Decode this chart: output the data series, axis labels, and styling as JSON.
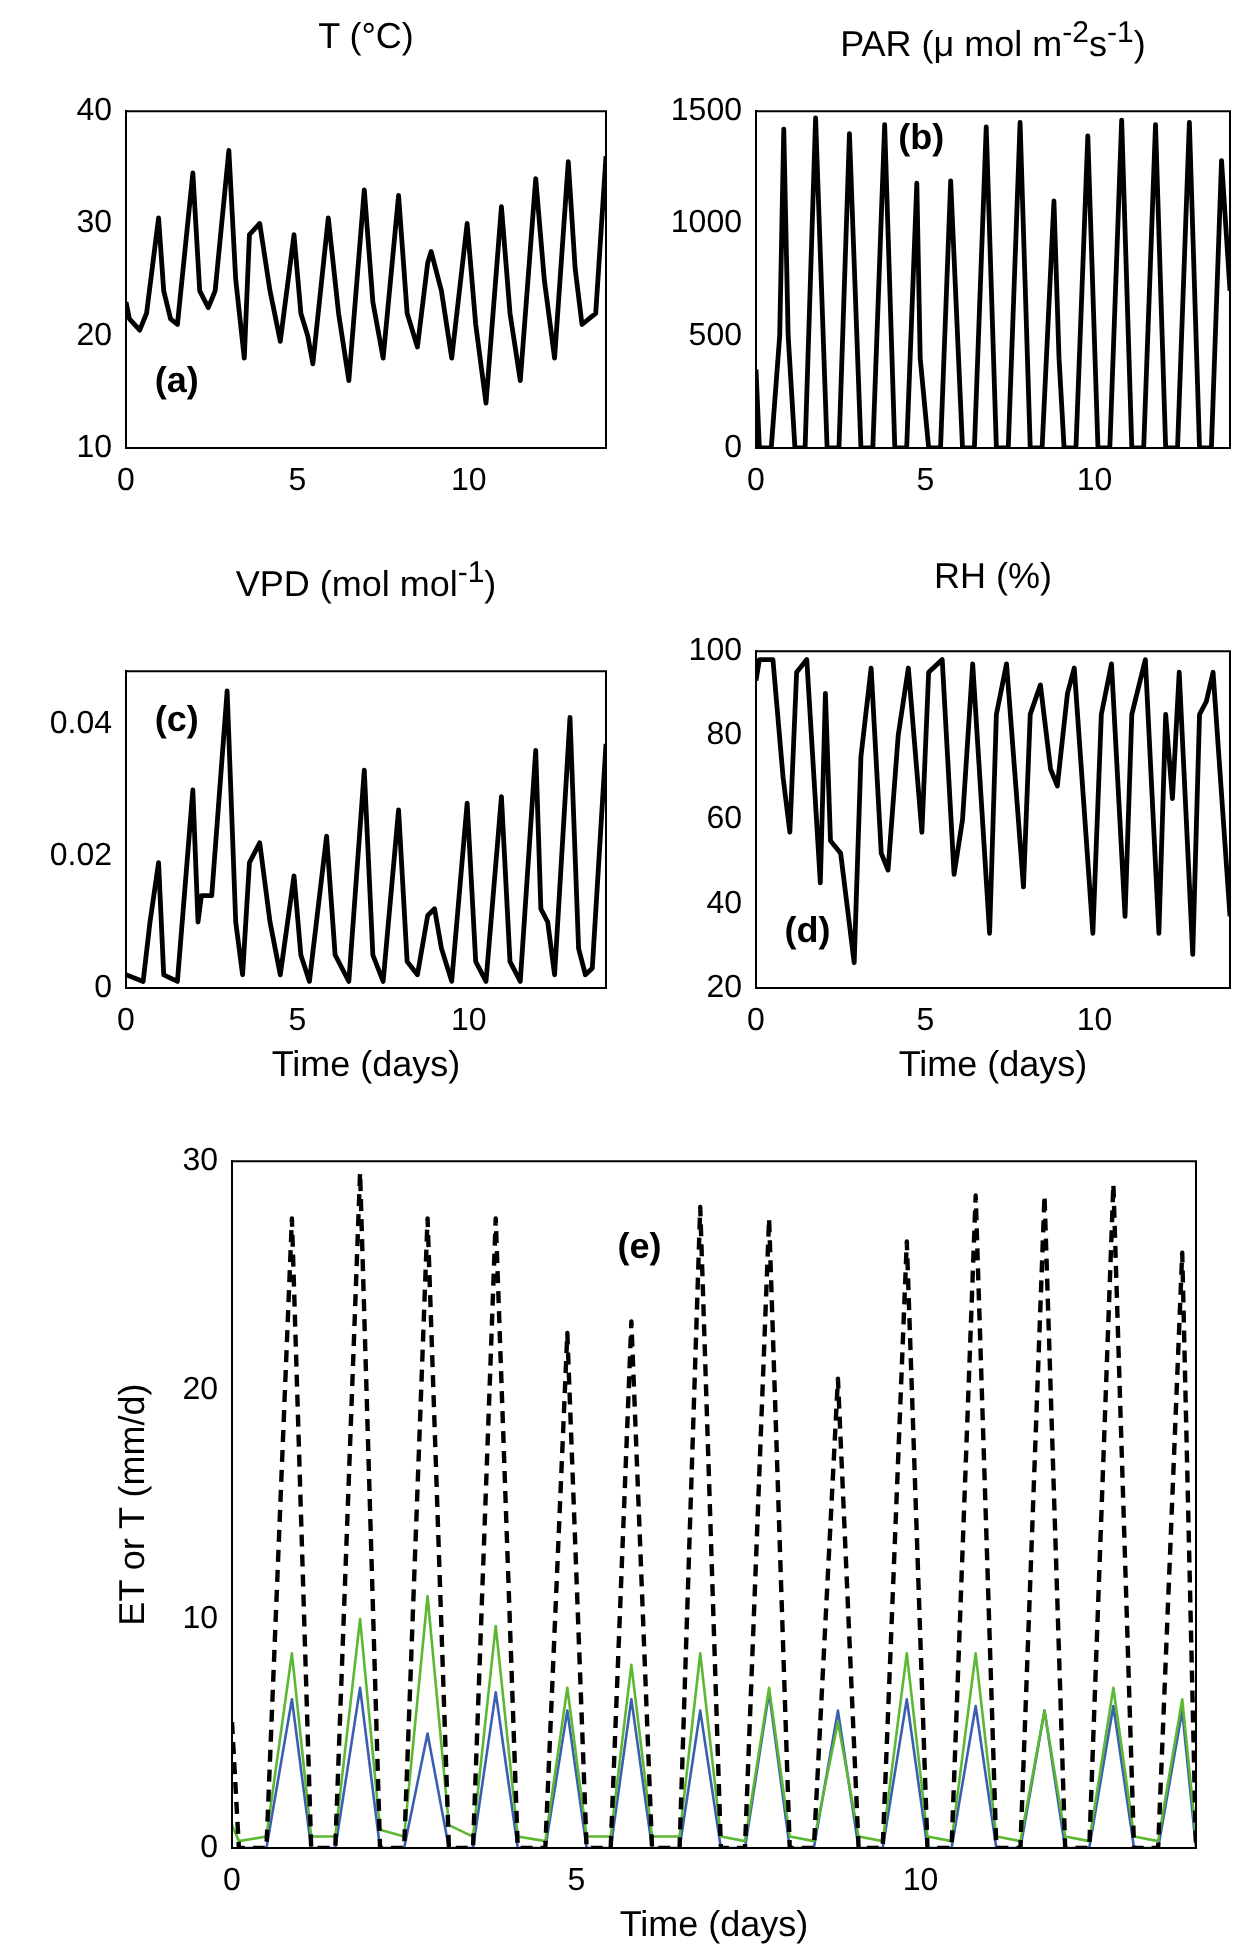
{
  "chart_data": [
    {
      "type": "line",
      "title": "T (°C)",
      "annotations": [
        "(a)"
      ],
      "marker": "none",
      "xlim": [
        0,
        14
      ],
      "xticks": [
        0,
        5,
        10
      ],
      "ylim": [
        10,
        40
      ],
      "yticks": [
        10,
        20,
        30,
        40
      ],
      "x": [
        0,
        0.1,
        0.4,
        0.6,
        0.95,
        1.1,
        1.3,
        1.5,
        1.95,
        2.15,
        2.4,
        2.6,
        3,
        3.2,
        3.45,
        3.6,
        3.9,
        4.2,
        4.5,
        4.9,
        5.1,
        5.3,
        5.45,
        5.9,
        6.2,
        6.5,
        6.95,
        7.2,
        7.5,
        7.95,
        8.2,
        8.5,
        8.8,
        8.9,
        9.2,
        9.5,
        9.95,
        10.2,
        10.5,
        10.95,
        11.2,
        11.5,
        11.95,
        12.2,
        12.5,
        12.9,
        13.1,
        13.3,
        13.5,
        13.7,
        14
      ],
      "series": [
        {
          "color": "#000000",
          "values": [
            23,
            21.5,
            20.5,
            22,
            30.5,
            24,
            21.5,
            21,
            34.5,
            24,
            22.5,
            24,
            36.5,
            25,
            18,
            29,
            30,
            24,
            19.5,
            29,
            22,
            20,
            17.5,
            30.5,
            22,
            16,
            33,
            23,
            18,
            32.5,
            22,
            19,
            26.5,
            27.5,
            24,
            18,
            30,
            21,
            14,
            31.5,
            22,
            16,
            34,
            25,
            18,
            35.5,
            26,
            21,
            21.5,
            22,
            36
          ]
        }
      ]
    },
    {
      "type": "line",
      "title": "PAR (μ mol m$^{-2}$s$^{-1}$)",
      "annotations": [
        "(b)"
      ],
      "marker": "none",
      "xlim": [
        0,
        14
      ],
      "xticks": [
        0,
        5,
        10
      ],
      "ylim": [
        0,
        1500
      ],
      "yticks": [
        0,
        500,
        1000,
        1500
      ],
      "x": [
        0,
        0.1,
        0.45,
        0.7,
        0.82,
        0.95,
        1.15,
        1.45,
        1.76,
        2.1,
        2.45,
        2.76,
        3.1,
        3.45,
        3.8,
        4.1,
        4.45,
        4.75,
        4.85,
        5.1,
        5.45,
        5.75,
        6.1,
        6.45,
        6.8,
        7.1,
        7.45,
        7.8,
        8.1,
        8.45,
        8.8,
        8.95,
        9.1,
        9.45,
        9.8,
        10.1,
        10.45,
        10.8,
        11.1,
        11.45,
        11.8,
        12.1,
        12.45,
        12.8,
        13.1,
        13.45,
        13.75,
        14
      ],
      "series": [
        {
          "color": "#000000",
          "values": [
            350,
            0,
            0,
            500,
            1420,
            500,
            0,
            0,
            1470,
            0,
            0,
            1400,
            0,
            0,
            1440,
            0,
            0,
            1180,
            400,
            0,
            0,
            1190,
            0,
            0,
            1430,
            0,
            0,
            1450,
            0,
            0,
            1100,
            400,
            0,
            0,
            1390,
            0,
            0,
            1460,
            0,
            0,
            1440,
            0,
            0,
            1450,
            0,
            0,
            1280,
            700
          ]
        }
      ]
    },
    {
      "type": "line",
      "title": "VPD (mol mol$^{-1}$)",
      "xlabel": "Time (days)",
      "annotations": [
        "(c)"
      ],
      "marker": "none",
      "xlim": [
        0,
        14
      ],
      "xticks": [
        0,
        5,
        10
      ],
      "ylim": [
        0,
        0.048
      ],
      "yticks": [
        0,
        0.02,
        0.04
      ],
      "x": [
        0,
        0.5,
        0.7,
        0.95,
        1.1,
        1.5,
        1.95,
        2.1,
        2.2,
        2.5,
        2.95,
        3.2,
        3.4,
        3.6,
        3.9,
        4.2,
        4.5,
        4.9,
        5.1,
        5.35,
        5.85,
        6.1,
        6.5,
        6.95,
        7.2,
        7.5,
        7.95,
        8.2,
        8.5,
        8.8,
        9,
        9.2,
        9.5,
        9.95,
        10.2,
        10.5,
        10.95,
        11.2,
        11.5,
        11.95,
        12.1,
        12.3,
        12.5,
        12.95,
        13.2,
        13.4,
        13.6,
        14
      ],
      "series": [
        {
          "color": "#000000",
          "values": [
            0.002,
            0.001,
            0.01,
            0.019,
            0.002,
            0.001,
            0.03,
            0.01,
            0.014,
            0.014,
            0.045,
            0.01,
            0.002,
            0.019,
            0.022,
            0.01,
            0.002,
            0.017,
            0.005,
            0.001,
            0.023,
            0.005,
            0.001,
            0.033,
            0.005,
            0.001,
            0.027,
            0.004,
            0.002,
            0.011,
            0.012,
            0.006,
            0.001,
            0.028,
            0.004,
            0.001,
            0.029,
            0.004,
            0.001,
            0.036,
            0.012,
            0.01,
            0.002,
            0.041,
            0.006,
            0.002,
            0.003,
            0.037
          ]
        }
      ]
    },
    {
      "type": "line",
      "title": "RH (%)",
      "xlabel": "Time (days)",
      "annotations": [
        "(d)"
      ],
      "marker": "none",
      "xlim": [
        0,
        14
      ],
      "xticks": [
        0,
        5,
        10
      ],
      "ylim": [
        20,
        100
      ],
      "yticks": [
        20,
        40,
        60,
        80,
        100
      ],
      "x": [
        0,
        0.1,
        0.5,
        0.8,
        1,
        1.2,
        1.5,
        1.9,
        2.05,
        2.2,
        2.5,
        2.9,
        3.1,
        3.4,
        3.7,
        3.9,
        4.2,
        4.5,
        4.9,
        5.1,
        5.5,
        5.85,
        6.1,
        6.4,
        6.9,
        7.1,
        7.4,
        7.9,
        8.1,
        8.4,
        8.7,
        8.9,
        9.2,
        9.4,
        9.95,
        10.2,
        10.5,
        10.9,
        11.1,
        11.5,
        11.9,
        12.1,
        12.3,
        12.5,
        12.9,
        13.1,
        13.3,
        13.5,
        14
      ],
      "series": [
        {
          "color": "#000000",
          "values": [
            93,
            98,
            98,
            70,
            57,
            95,
            98,
            45,
            90,
            55,
            52,
            26,
            75,
            96,
            52,
            48,
            80,
            96,
            57,
            95,
            98,
            47,
            60,
            97,
            33,
            85,
            97,
            44,
            85,
            92,
            72,
            68,
            90,
            96,
            33,
            85,
            97,
            37,
            85,
            98,
            33,
            85,
            65,
            95,
            28,
            85,
            88,
            95,
            37
          ]
        }
      ]
    },
    {
      "type": "line",
      "ylabel": "ET or T (mm/d)",
      "xlabel": "Time (days)",
      "annotations": [
        "(e)"
      ],
      "marker": "none",
      "xlim": [
        0,
        14
      ],
      "xticks": [
        0,
        5,
        10
      ],
      "ylim": [
        0,
        30
      ],
      "yticks": [
        0,
        10,
        20,
        30
      ],
      "x": [
        0,
        0.1,
        0.5,
        0.87,
        1.15,
        1.5,
        1.86,
        2.15,
        2.5,
        2.84,
        3.15,
        3.5,
        3.83,
        4.15,
        4.55,
        4.87,
        5.15,
        5.5,
        5.8,
        6.1,
        6.5,
        6.8,
        7.1,
        7.45,
        7.8,
        8.1,
        8.45,
        8.8,
        9.1,
        9.45,
        9.8,
        10.1,
        10.45,
        10.8,
        11.1,
        11.45,
        11.8,
        12.1,
        12.45,
        12.8,
        13.1,
        13.45,
        13.8,
        14
      ],
      "series": [
        {
          "color": "#000000",
          "line_style": "dashed",
          "values": [
            5.5,
            0,
            0,
            27.5,
            0,
            0,
            29.5,
            0,
            0,
            27.5,
            0,
            0,
            27.5,
            0,
            0,
            22.5,
            0,
            0,
            23,
            0,
            0,
            28,
            0,
            0,
            27.5,
            0,
            0,
            20.5,
            0,
            0,
            26.5,
            0,
            0,
            28.5,
            0,
            0,
            28.5,
            0,
            0,
            29,
            0,
            0,
            26,
            0
          ]
        },
        {
          "color": "#5cb832",
          "values": [
            1,
            0.3,
            0.5,
            8.5,
            0.5,
            0.5,
            10,
            0.8,
            0.5,
            11,
            1,
            0.5,
            9.7,
            0.5,
            0.3,
            7,
            0.5,
            0.5,
            8,
            0.5,
            0.5,
            8.5,
            0.5,
            0.3,
            7,
            0.5,
            0.3,
            5.5,
            0.5,
            0.3,
            8.5,
            0.5,
            0.3,
            8.5,
            0.5,
            0.3,
            6,
            0.5,
            0.3,
            7,
            0.5,
            0.3,
            6.5,
            0.5
          ]
        },
        {
          "color": "#3a5fb0",
          "values": [
            null,
            0,
            0,
            6.5,
            0,
            0,
            7,
            0,
            0,
            5,
            0,
            0,
            6.8,
            0,
            0,
            6,
            0,
            0,
            6.5,
            0,
            0,
            6,
            0,
            0,
            6.8,
            0,
            0,
            6,
            0,
            0,
            6.5,
            0,
            0,
            6.2,
            0,
            0,
            6,
            0,
            0,
            6.2,
            0,
            0,
            6,
            0
          ]
        }
      ]
    }
  ]
}
